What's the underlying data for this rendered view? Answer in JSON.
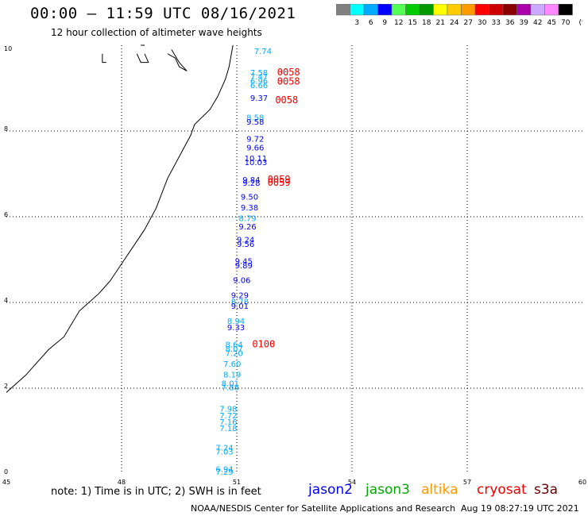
{
  "header": {
    "title": "00:00 – 11:59 UTC 08/16/2021",
    "subtitle": "12 hour collection of altimeter wave heights"
  },
  "legend": {
    "colors": [
      "#808080",
      "#00ffff",
      "#00aaff",
      "#0000ff",
      "#55ff55",
      "#00cc00",
      "#009900",
      "#ffff00",
      "#ffcc00",
      "#ff9900",
      "#ff0000",
      "#cc0000",
      "#880000",
      "#aa00aa",
      "#ccaaff",
      "#ff88ff",
      "#000000"
    ],
    "labels": [
      "3",
      "6",
      "9",
      "12",
      "15",
      "18",
      "21",
      "24",
      "27",
      "30",
      "33",
      "36",
      "39",
      "42",
      "45",
      "70"
    ],
    "unit": "(ft)"
  },
  "map": {
    "x_ticks": [
      "45",
      "48",
      "51",
      "54",
      "57",
      "60"
    ],
    "y_ticks": [
      "0",
      "2",
      "4",
      "6",
      "8",
      "10"
    ],
    "lon_range": [
      45,
      60
    ],
    "lat_range": [
      0,
      10
    ],
    "coastline": [
      [
        50.9,
        10
      ],
      [
        50.8,
        9.5
      ],
      [
        50.7,
        9.2
      ],
      [
        50.5,
        8.8
      ],
      [
        50.3,
        8.5
      ],
      [
        49.9,
        8.15
      ],
      [
        49.8,
        7.9
      ],
      [
        49.5,
        7.4
      ],
      [
        49.2,
        6.9
      ],
      [
        48.9,
        6.2
      ],
      [
        48.6,
        5.7
      ],
      [
        48.3,
        5.3
      ],
      [
        48.0,
        4.9
      ],
      [
        47.7,
        4.5
      ],
      [
        47.4,
        4.2
      ],
      [
        46.9,
        3.8
      ],
      [
        46.5,
        3.2
      ],
      [
        46.1,
        2.9
      ],
      [
        45.5,
        2.3
      ],
      [
        45.0,
        1.9
      ]
    ],
    "islands": [
      [
        [
          47.5,
          9.8
        ],
        [
          47.5,
          9.6
        ],
        [
          47.6,
          9.6
        ]
      ],
      [
        [
          48.4,
          9.8
        ],
        [
          48.5,
          9.6
        ],
        [
          48.7,
          9.6
        ],
        [
          48.6,
          9.8
        ]
      ],
      [
        [
          49.2,
          9.8
        ],
        [
          49.4,
          9.7
        ],
        [
          49.5,
          9.5
        ],
        [
          49.7,
          9.4
        ],
        [
          49.5,
          9.6
        ],
        [
          49.3,
          9.9
        ]
      ],
      [
        [
          48.5,
          10
        ],
        [
          48.6,
          10
        ]
      ]
    ]
  },
  "observations": [
    {
      "label": "7.74",
      "lon": 51.45,
      "lat": 9.8,
      "color": "#00aaff"
    },
    {
      "label": "7.58",
      "lon": 51.35,
      "lat": 9.3,
      "color": "#00aaff"
    },
    {
      "label": "7.47",
      "lon": 51.35,
      "lat": 9.2,
      "color": "#00aaff"
    },
    {
      "label": "6.96",
      "lon": 51.35,
      "lat": 9.1,
      "color": "#00aaff"
    },
    {
      "label": "6.66",
      "lon": 51.35,
      "lat": 9.0,
      "color": "#00aaff"
    },
    {
      "label": "9.37",
      "lon": 51.35,
      "lat": 8.7,
      "color": "#0000ff"
    },
    {
      "label": "8.58",
      "lon": 51.25,
      "lat": 8.25,
      "color": "#00aaff"
    },
    {
      "label": "9.58",
      "lon": 51.25,
      "lat": 8.15,
      "color": "#0000ff"
    },
    {
      "label": "9.72",
      "lon": 51.25,
      "lat": 7.75,
      "color": "#0000ff"
    },
    {
      "label": "9.66",
      "lon": 51.25,
      "lat": 7.55,
      "color": "#0000ff"
    },
    {
      "label": "10.11",
      "lon": 51.2,
      "lat": 7.3,
      "color": "#0000ff"
    },
    {
      "label": "10.03",
      "lon": 51.2,
      "lat": 7.2,
      "color": "#0000ff"
    },
    {
      "label": "9.84",
      "lon": 51.15,
      "lat": 6.8,
      "color": "#0000ff"
    },
    {
      "label": "9.28",
      "lon": 51.15,
      "lat": 6.72,
      "color": "#0000ff"
    },
    {
      "label": "9.50",
      "lon": 51.1,
      "lat": 6.4,
      "color": "#0000ff"
    },
    {
      "label": "9.38",
      "lon": 51.1,
      "lat": 6.15,
      "color": "#0000ff"
    },
    {
      "label": "8.79",
      "lon": 51.05,
      "lat": 5.9,
      "color": "#00aaff"
    },
    {
      "label": "9.26",
      "lon": 51.05,
      "lat": 5.7,
      "color": "#0000ff"
    },
    {
      "label": "9.24",
      "lon": 51.0,
      "lat": 5.4,
      "color": "#0000ff"
    },
    {
      "label": "9.56",
      "lon": 51.0,
      "lat": 5.3,
      "color": "#0000ff"
    },
    {
      "label": "9.45",
      "lon": 50.95,
      "lat": 4.9,
      "color": "#0000ff"
    },
    {
      "label": "9.89",
      "lon": 50.95,
      "lat": 4.8,
      "color": "#0000ff"
    },
    {
      "label": "9.06",
      "lon": 50.9,
      "lat": 4.45,
      "color": "#0000ff"
    },
    {
      "label": "9.29",
      "lon": 50.85,
      "lat": 4.1,
      "color": "#0000ff"
    },
    {
      "label": "8.78",
      "lon": 50.85,
      "lat": 3.95,
      "color": "#00aaff"
    },
    {
      "label": "9.01",
      "lon": 50.85,
      "lat": 3.85,
      "color": "#0000ff"
    },
    {
      "label": "8.94",
      "lon": 50.75,
      "lat": 3.5,
      "color": "#00aaff"
    },
    {
      "label": "9.33",
      "lon": 50.75,
      "lat": 3.35,
      "color": "#0000ff"
    },
    {
      "label": "8.64",
      "lon": 50.7,
      "lat": 2.95,
      "color": "#00aaff"
    },
    {
      "label": "8.07",
      "lon": 50.7,
      "lat": 2.85,
      "color": "#00aaff"
    },
    {
      "label": "7.20",
      "lon": 50.7,
      "lat": 2.75,
      "color": "#00aaff"
    },
    {
      "label": "7.60",
      "lon": 50.65,
      "lat": 2.5,
      "color": "#00aaff"
    },
    {
      "label": "8.19",
      "lon": 50.65,
      "lat": 2.25,
      "color": "#00aaff"
    },
    {
      "label": "8.01",
      "lon": 50.6,
      "lat": 2.05,
      "color": "#00aaff"
    },
    {
      "label": "7.88",
      "lon": 50.6,
      "lat": 1.95,
      "color": "#00aaff"
    },
    {
      "label": "7.98",
      "lon": 50.55,
      "lat": 1.45,
      "color": "#00aaff"
    },
    {
      "label": "7.72",
      "lon": 50.55,
      "lat": 1.3,
      "color": "#00aaff"
    },
    {
      "label": "7.16",
      "lon": 50.55,
      "lat": 1.15,
      "color": "#00aaff"
    },
    {
      "label": "7.18",
      "lon": 50.55,
      "lat": 1.0,
      "color": "#00aaff"
    },
    {
      "label": "7.24",
      "lon": 50.45,
      "lat": 0.55,
      "color": "#00aaff"
    },
    {
      "label": "7.03",
      "lon": 50.45,
      "lat": 0.45,
      "color": "#00aaff"
    },
    {
      "label": "6.94",
      "lon": 50.45,
      "lat": 0.05,
      "color": "#00aaff"
    },
    {
      "label": "7.29",
      "lon": 50.45,
      "lat": -0.02,
      "color": "#00aaff"
    }
  ],
  "time_labels": [
    {
      "label": "0058",
      "lon": 52.05,
      "lat": 9.3
    },
    {
      "label": "0058",
      "lon": 52.05,
      "lat": 9.08
    },
    {
      "label": "0058",
      "lon": 52.0,
      "lat": 8.65
    },
    {
      "label": "0059",
      "lon": 51.8,
      "lat": 6.8
    },
    {
      "label": "0059",
      "lon": 51.8,
      "lat": 6.72
    },
    {
      "label": "0100",
      "lon": 51.4,
      "lat": 2.95
    }
  ],
  "footer": {
    "note": "note: 1) Time is in UTC; 2) SWH is in feet",
    "satellites": [
      {
        "label": "jason2",
        "color": "#0000ff"
      },
      {
        "label": "jason3",
        "color": "#00aa00"
      },
      {
        "label": "altika",
        "color": "#ff9900"
      },
      {
        "label": "cryosat",
        "color": "#ee0000"
      },
      {
        "label": "s3a",
        "color": "#660000"
      }
    ],
    "credit": "NOAA/NESDIS Center for Satellite Applications and Research",
    "timestamp": "Aug 19 08:27:19 UTC 2021"
  }
}
